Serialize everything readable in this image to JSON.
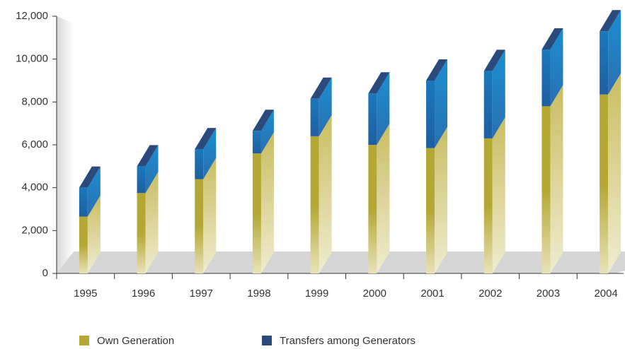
{
  "chart_data": {
    "type": "bar3d_stacked",
    "categories": [
      "1995",
      "1996",
      "1997",
      "1998",
      "1999",
      "2000",
      "2001",
      "2002",
      "2003",
      "2004"
    ],
    "series": [
      {
        "name": "Own Generation",
        "color": "#b5a733",
        "values": [
          2650,
          3750,
          4400,
          5600,
          6400,
          6000,
          5850,
          6300,
          7800,
          8350
        ]
      },
      {
        "name": "Transfers among Generators",
        "color": "#2a4a7c",
        "values": [
          1350,
          1250,
          1400,
          1050,
          1750,
          2400,
          3150,
          3150,
          2650,
          2950
        ]
      }
    ],
    "ylim": [
      0,
      12000
    ],
    "yticks": [
      0,
      {
        "value": 2000,
        "label": "2,000"
      },
      {
        "value": 4000,
        "label": "4,000"
      },
      {
        "value": 6000,
        "label": "6,000"
      },
      {
        "value": 8000,
        "label": "8,000"
      },
      {
        "value": 10000,
        "label": "10,000"
      },
      {
        "value": 12000,
        "label": "12,000"
      }
    ]
  }
}
